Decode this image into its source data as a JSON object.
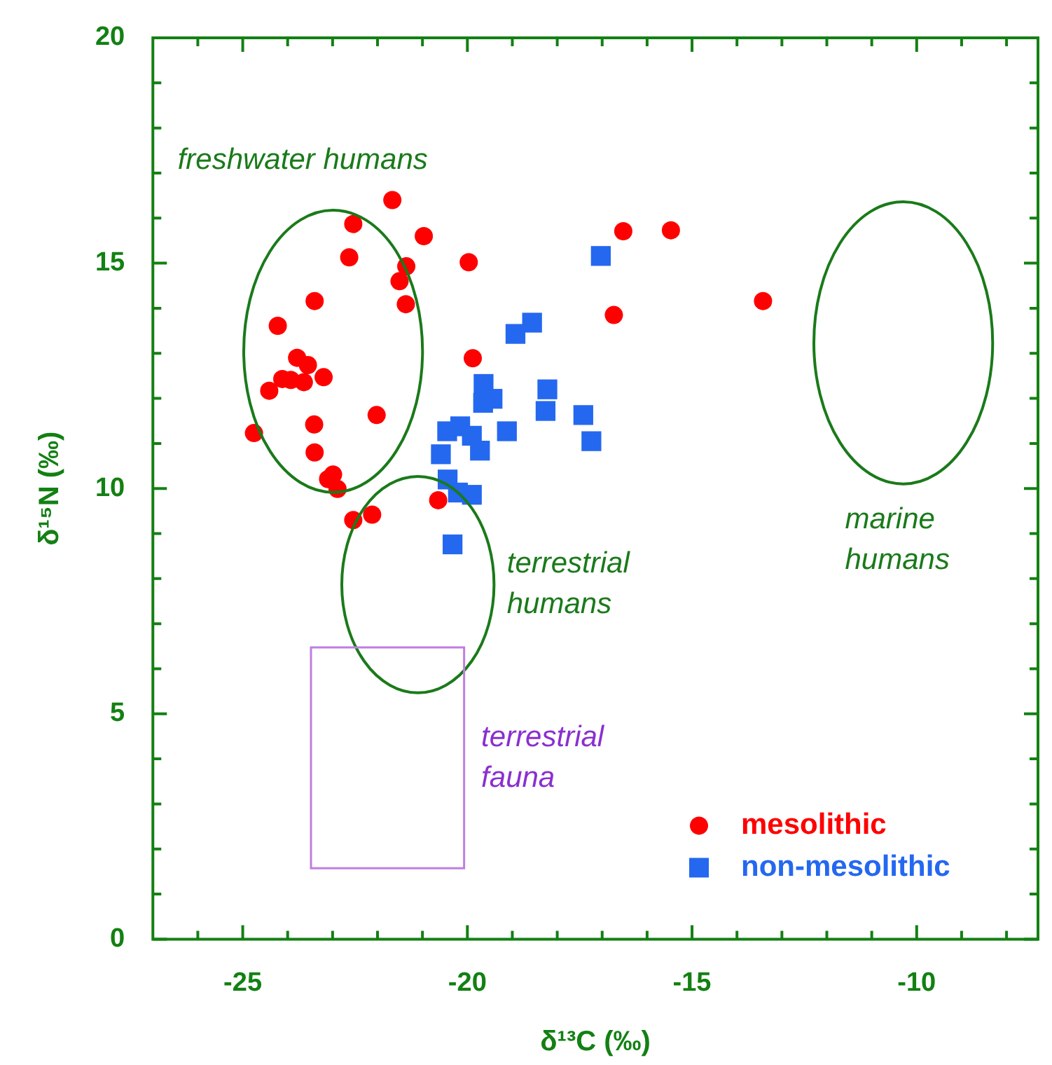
{
  "chart_data": {
    "type": "scatter",
    "xlabel": "δ¹³C (‰)",
    "ylabel": "δ¹⁵N (‰)",
    "xlim": [
      -27,
      -7.3
    ],
    "ylim": [
      0,
      20
    ],
    "xticks": [
      {
        "value": -26,
        "label": null
      },
      -25,
      {
        "value": -24,
        "label": null
      },
      {
        "value": -23,
        "label": null
      },
      {
        "value": -22,
        "label": null
      },
      {
        "value": -21,
        "label": null
      },
      -20,
      {
        "value": -19,
        "label": null
      },
      {
        "value": -18,
        "label": null
      },
      {
        "value": -17,
        "label": null
      },
      {
        "value": -16,
        "label": null
      },
      -15,
      {
        "value": -14,
        "label": null
      },
      {
        "value": -13,
        "label": null
      },
      {
        "value": -12,
        "label": null
      },
      {
        "value": -11,
        "label": null
      },
      -10,
      {
        "value": -9,
        "label": null
      },
      {
        "value": -8,
        "label": null
      }
    ],
    "yticks": [
      0,
      {
        "value": 1,
        "label": null
      },
      {
        "value": 2,
        "label": null
      },
      {
        "value": 3,
        "label": null
      },
      {
        "value": 4,
        "label": null
      },
      5,
      {
        "value": 6,
        "label": null
      },
      {
        "value": 7,
        "label": null
      },
      {
        "value": 8,
        "label": null
      },
      {
        "value": 9,
        "label": null
      },
      10,
      {
        "value": 11,
        "label": null
      },
      {
        "value": 12,
        "label": null
      },
      {
        "value": 13,
        "label": null
      },
      {
        "value": 14,
        "label": null
      },
      15,
      {
        "value": 16,
        "label": null
      },
      {
        "value": 17,
        "label": null
      },
      {
        "value": 18,
        "label": null
      },
      {
        "value": 19,
        "label": null
      },
      20
    ],
    "legend": "bottom right",
    "series": [
      {
        "name": "mesolithic",
        "color": "#ff0000",
        "marker": "circle",
        "x": [
          -21.67,
          -22.54,
          -20.97,
          -22.63,
          -21.36,
          -19.97,
          -21.51,
          -21.37,
          -23.4,
          -24.22,
          -19.88,
          -23.79,
          -23.55,
          -24.12,
          -23.93,
          -23.64,
          -23.2,
          -24.41,
          -22.02,
          -24.75,
          -23.41,
          -23.4,
          -22.99,
          -23.1,
          -22.89,
          -20.65,
          -22.54,
          -22.12,
          -16.53,
          -15.47,
          -16.74,
          -13.42
        ],
        "values": [
          16.4,
          15.87,
          15.6,
          15.13,
          14.93,
          15.02,
          14.6,
          14.09,
          14.16,
          13.61,
          12.89,
          12.9,
          12.74,
          12.43,
          12.41,
          12.36,
          12.47,
          12.17,
          11.63,
          11.23,
          11.42,
          10.8,
          10.31,
          10.21,
          9.99,
          9.74,
          9.3,
          9.42,
          15.71,
          15.73,
          13.85,
          14.16
        ]
      },
      {
        "name": "non-mesolithic",
        "color": "#2468f0",
        "marker": "square",
        "x": [
          -17.03,
          -18.56,
          -18.93,
          -19.64,
          -19.44,
          -19.65,
          -18.22,
          -18.26,
          -17.42,
          -17.24,
          -19.12,
          -20.45,
          -20.16,
          -19.9,
          -19.72,
          -20.59,
          -20.44,
          -20.21,
          -19.9,
          -20.33
        ],
        "values": [
          15.16,
          13.68,
          13.43,
          12.32,
          11.99,
          11.9,
          12.2,
          11.72,
          11.63,
          11.05,
          11.27,
          11.27,
          11.38,
          11.17,
          10.84,
          10.76,
          10.2,
          9.91,
          9.86,
          8.76
        ]
      }
    ],
    "annotations": [
      "freshwater humans",
      "terrestrial\nhumans",
      "marine\nhumans",
      "terrestrial\nfauna"
    ]
  }
}
